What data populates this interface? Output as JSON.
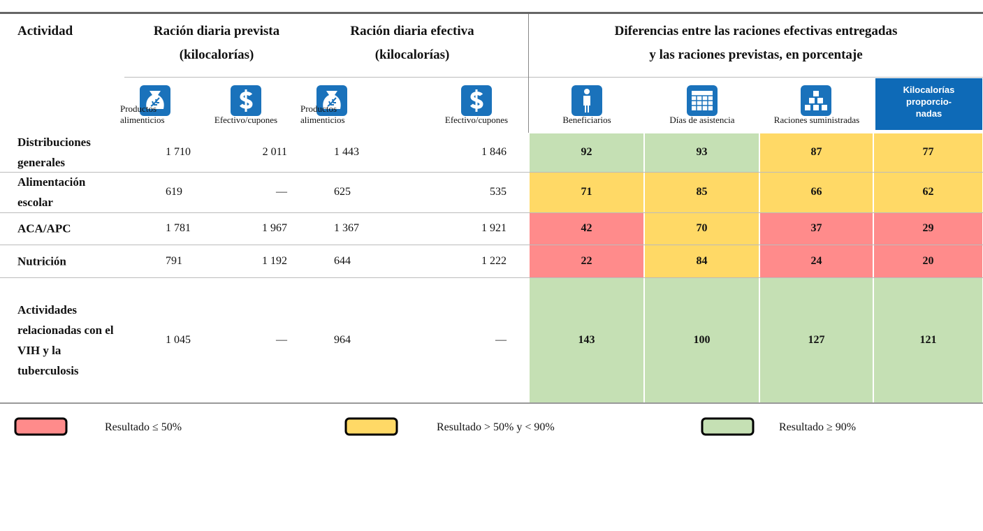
{
  "headers": {
    "activity": "Actividad",
    "planned": "Ración diaria prevista\n(kilocalorías)",
    "actual": "Ración diaria efectiva\n(kilocalorías)",
    "diff": "Diferencias entre las raciones efectivas entregadas\ny las raciones previstas, en porcentaje"
  },
  "subheaders": [
    "Productos\nalimenticios",
    "Efectivo/cupones",
    "Productos\nalimenticios",
    "Efectivo/cupones",
    "Beneficiarios",
    "Días de asistencia",
    "Raciones suministradas",
    "Kilocalorías\nproporcio-\nnadas"
  ],
  "rows": [
    {
      "label": "Distribuciones generales",
      "cells": [
        "1 710",
        "2 011",
        "1 443",
        "1 846"
      ],
      "diffs": [
        "92",
        "93",
        "87",
        "77"
      ],
      "colors": [
        "#c5e0b4",
        "#c5e0b4",
        "#ffd966",
        "#ffd966"
      ]
    },
    {
      "label": "Alimentación escolar",
      "cells": [
        "619",
        "—",
        "625",
        "535"
      ],
      "diffs": [
        "71",
        "85",
        "66",
        "62"
      ],
      "colors": [
        "#ffd966",
        "#ffd966",
        "#ffd966",
        "#ffd966"
      ]
    },
    {
      "label": "ACA/APC",
      "cells": [
        "1 781",
        "1 967",
        "1 367",
        "1 921"
      ],
      "diffs": [
        "42",
        "70",
        "37",
        "29"
      ],
      "colors": [
        "#ff8b8b",
        "#ffd966",
        "#ff8b8b",
        "#ff8b8b"
      ]
    },
    {
      "label": "Nutrición",
      "cells": [
        "791",
        "1 192",
        "644",
        "1 222"
      ],
      "diffs": [
        "22",
        "84",
        "24",
        "20"
      ],
      "colors": [
        "#ff8b8b",
        "#ffd966",
        "#ff8b8b",
        "#ff8b8b"
      ]
    },
    {
      "label": "Actividades relacionadas con el VIH y la tuberculosis",
      "cells": [
        "1 045",
        "—",
        "964",
        "—"
      ],
      "diffs": [
        "143",
        "100",
        "127",
        "121"
      ],
      "colors": [
        "#c5e0b4",
        "#c5e0b4",
        "#c5e0b4",
        "#c5e0b4"
      ]
    }
  ],
  "legend": [
    {
      "label": "Resultado ≤ 50%",
      "color": "#ff8b8b"
    },
    {
      "label": "Resultado > 50% y < 90%",
      "color": "#ffd966"
    },
    {
      "label": "Resultado ≥ 90%",
      "color": "#c5e0b4"
    }
  ]
}
